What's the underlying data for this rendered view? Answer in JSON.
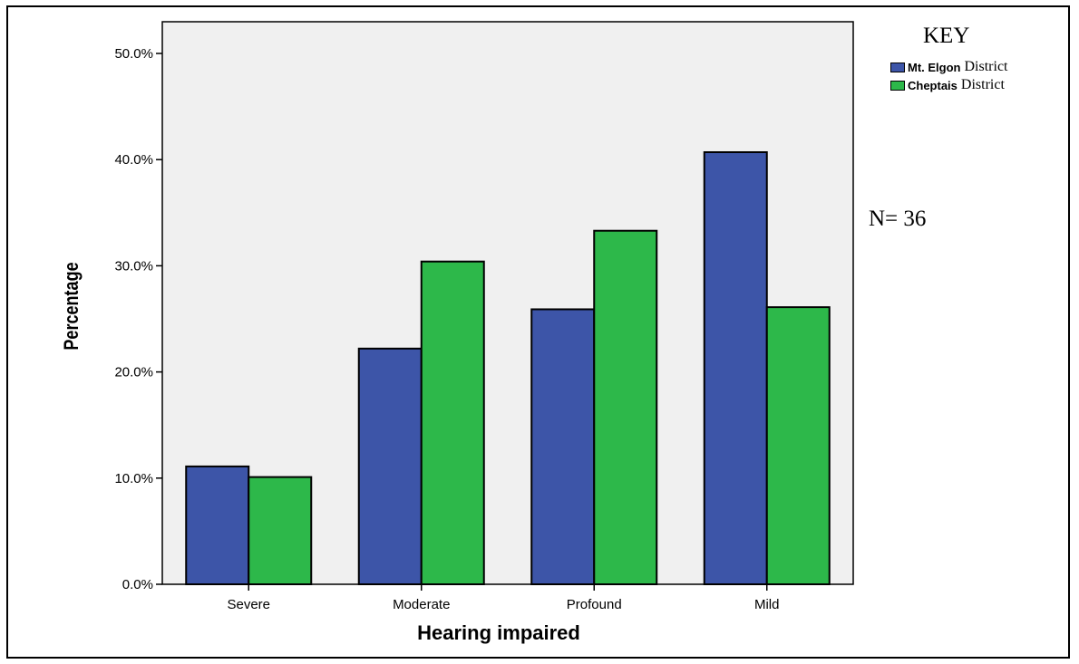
{
  "chart_data": {
    "type": "bar",
    "xlabel": "Hearing impaired",
    "ylabel": "Percentage",
    "categories": [
      "Severe",
      "Moderate",
      "Profound",
      "Mild"
    ],
    "series": [
      {
        "name": "Mt. Elgon",
        "color": "#3d55a8",
        "values": [
          11.1,
          22.2,
          25.9,
          40.7
        ]
      },
      {
        "name": "Cheptais",
        "color": "#2db84a",
        "values": [
          10.1,
          30.4,
          33.3,
          26.1
        ]
      }
    ],
    "ylim": [
      0,
      50
    ],
    "yticks": [
      "0.0%",
      "10.0%",
      "20.0%",
      "30.0%",
      "40.0%",
      "50.0%"
    ],
    "ytick_values": [
      0,
      10,
      20,
      30,
      40,
      50
    ],
    "grid": false,
    "plot_background": "#f0f0f0",
    "legend_placement": "top-right"
  },
  "legend": {
    "title": "KEY",
    "suffix": "District",
    "items": [
      "Mt. Elgon",
      "Cheptais"
    ]
  },
  "annotation": "N= 36"
}
